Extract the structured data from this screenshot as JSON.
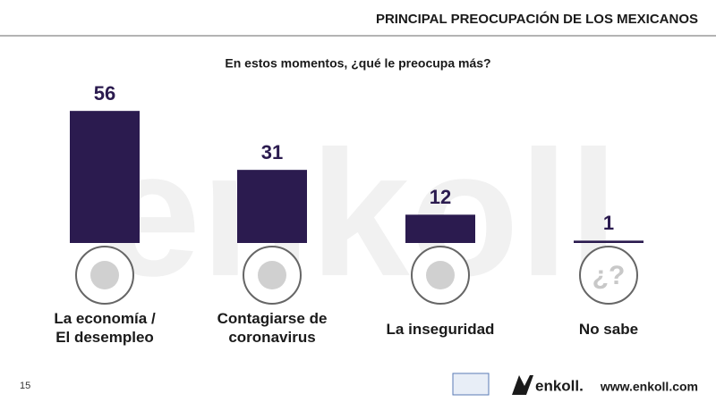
{
  "chart_data": {
    "type": "bar",
    "title": "PRINCIPAL PREOCUPACIÓN DE LOS MEXICANOS",
    "subtitle": "En estos momentos, ¿qué le preocupa más?",
    "categories": [
      "La economía / El desempleo",
      "Contagiarse de coronavirus",
      "La inseguridad",
      "No sabe"
    ],
    "values": [
      56,
      31,
      12,
      1
    ],
    "color": "#2b1b4f",
    "icon_text": "¿?",
    "watermark": "enkoll",
    "logo_text": "enkoll.",
    "page_number": "15",
    "website": "www.enkoll.com"
  }
}
